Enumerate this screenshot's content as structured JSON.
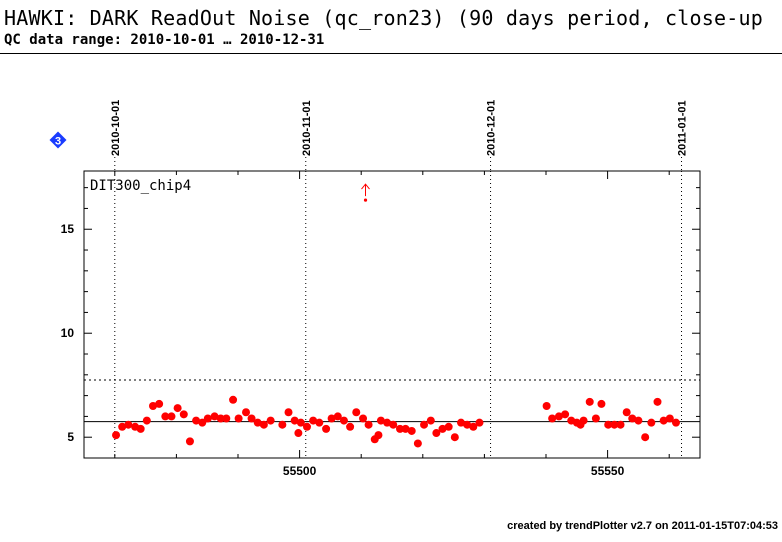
{
  "header": {
    "title": "HAWKI: DARK ReadOut Noise (qc_ron23) (90 days period, close-up",
    "subtitle": "QC data range: 2010-10-01 … 2010-12-31"
  },
  "badge": {
    "text": "3",
    "color": "#1a3cff"
  },
  "footer": {
    "text": "created by trendPlotter v2.7 on 2011-01-15T07:04:53"
  },
  "chart_data": {
    "type": "scatter",
    "panel_label": "DIT300_chip4",
    "x_range": [
      55465,
      55565
    ],
    "y_range": [
      4,
      17.8
    ],
    "x_ticks": [
      55500,
      55550
    ],
    "y_ticks": [
      5,
      10,
      15
    ],
    "date_markers": [
      {
        "label": "2010-10-01",
        "x": 55470
      },
      {
        "label": "2010-11-01",
        "x": 55501
      },
      {
        "label": "2010-12-01",
        "x": 55531
      },
      {
        "label": "2011-01-01",
        "x": 55562
      }
    ],
    "reference_lines": {
      "mean": 5.75,
      "upper_limit": 7.75
    },
    "grid": "vertical dotted at month starts",
    "point_color": "#ff0000",
    "outlier": {
      "x": 55510.7,
      "y": 16.4,
      "direction": "up"
    },
    "series": [
      {
        "x": [
          55470.2,
          55471.2,
          55472.2,
          55473.3,
          55474.2,
          55475.2,
          55476.2,
          55477.2,
          55478.2,
          55479.2,
          55480.2,
          55481.2,
          55482.2,
          55483.2,
          55484.2,
          55485.1,
          55486.2,
          55487.2,
          55488.1,
          55489.2,
          55490.1,
          55491.3,
          55492.2,
          55493.2,
          55494.2,
          55495.3,
          55497.2,
          55498.2,
          55499.2,
          55499.8,
          55500.2,
          55501.2,
          55502.2,
          55503.2,
          55504.3,
          55505.2,
          55506.2,
          55507.2,
          55508.2,
          55509.2,
          55510.3,
          55511.2,
          55512.2,
          55512.8,
          55513.2,
          55514.2,
          55515.2,
          55516.3,
          55517.2,
          55518.2,
          55519.2,
          55520.2,
          55521.3,
          55522.2,
          55523.2,
          55524.2,
          55525.2,
          55526.2,
          55527.2,
          55528.2,
          55529.2,
          55540.1,
          55541.0,
          55542.1,
          55543.1,
          55544.1,
          55545.0,
          55545.6,
          55546.1,
          55547.1,
          55548.1,
          55549.0,
          55550.1,
          55551.1,
          55552.1,
          55553.1,
          55554.0,
          55555.0,
          55556.1,
          55557.1,
          55558.1,
          55559.1,
          55560.1,
          55561.1
        ],
        "y": [
          5.1,
          5.5,
          5.6,
          5.5,
          5.4,
          5.8,
          6.5,
          6.6,
          6.0,
          6.0,
          6.4,
          6.1,
          4.8,
          5.8,
          5.7,
          5.9,
          6.0,
          5.9,
          5.9,
          6.8,
          5.9,
          6.2,
          5.9,
          5.7,
          5.6,
          5.8,
          5.6,
          6.2,
          5.8,
          5.2,
          5.7,
          5.5,
          5.8,
          5.7,
          5.4,
          5.9,
          6.0,
          5.8,
          5.5,
          6.2,
          5.9,
          5.6,
          4.9,
          5.1,
          5.8,
          5.7,
          5.6,
          5.4,
          5.4,
          5.3,
          4.7,
          5.6,
          5.8,
          5.2,
          5.4,
          5.5,
          5.0,
          5.7,
          5.6,
          5.5,
          5.7,
          6.5,
          5.9,
          6.0,
          6.1,
          5.8,
          5.7,
          5.6,
          5.8,
          6.7,
          5.9,
          6.6,
          5.6,
          5.6,
          5.6,
          6.2,
          5.9,
          5.8,
          5.0,
          5.7,
          6.7,
          5.8,
          5.9,
          5.7
        ]
      }
    ]
  }
}
